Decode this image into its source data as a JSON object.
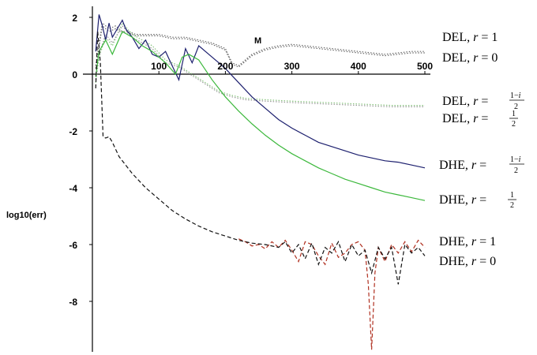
{
  "chart_data": {
    "type": "line",
    "title": "",
    "xlabel": "M",
    "ylabel": "log10(err)",
    "xlim": [
      0,
      500
    ],
    "ylim": [
      -10,
      2.5
    ],
    "x_ticks": [
      100,
      200,
      300,
      400,
      500
    ],
    "y_ticks": [
      2,
      0,
      -2,
      -4,
      -6,
      -8
    ],
    "grid": false,
    "legend_placement": "right",
    "legend_labels": {
      "del_r1": "DEL, r = 1",
      "del_r0": "DEL, r = 0",
      "del_r1mi": "DEL, r = (1−i)/2",
      "del_rhalf": "DEL, r = 1/2",
      "dhe_r1mi": "DHE, r = (1−i)/2",
      "dhe_rhalf": "DHE, r = 1/2",
      "dhe_r1": "DHE, r = 1",
      "dhe_r0": "DHE, r = 0"
    },
    "series": [
      {
        "name": "DEL, r = 1",
        "color": "#6a6a6a",
        "dash": "dot",
        "x": [
          5,
          15,
          25,
          35,
          45,
          55,
          65,
          80,
          100,
          120,
          140,
          160,
          180,
          200,
          210,
          220,
          230,
          240,
          260,
          280,
          300,
          320,
          340,
          360,
          380,
          400,
          420,
          440,
          460,
          480,
          500
        ],
        "y": [
          0.3,
          1.8,
          1.6,
          1.7,
          1.5,
          1.5,
          1.4,
          1.4,
          1.4,
          1.3,
          1.3,
          1.2,
          1.1,
          0.9,
          0.4,
          0.3,
          0.5,
          0.7,
          0.9,
          1.0,
          1.05,
          1.0,
          0.95,
          0.9,
          0.85,
          0.8,
          0.75,
          0.7,
          0.75,
          0.8,
          0.8
        ]
      },
      {
        "name": "DEL, r = 0",
        "color": "#6a6a6a",
        "dash": "dot",
        "x": [
          5,
          15,
          25,
          35,
          45,
          55,
          65,
          80,
          100,
          120,
          140,
          160,
          180,
          200,
          210,
          220,
          230,
          240,
          260,
          280,
          300,
          320,
          340,
          360,
          380,
          400,
          420,
          440,
          460,
          480,
          500
        ],
        "y": [
          0.2,
          1.7,
          1.5,
          1.6,
          1.45,
          1.45,
          1.35,
          1.35,
          1.35,
          1.25,
          1.25,
          1.15,
          1.05,
          0.85,
          0.35,
          0.25,
          0.45,
          0.65,
          0.85,
          0.95,
          1.0,
          0.95,
          0.9,
          0.85,
          0.8,
          0.75,
          0.7,
          0.65,
          0.7,
          0.75,
          0.75
        ]
      },
      {
        "name": "DEL, r = (1−i)/2",
        "color": "#88c47e",
        "dash": "dot",
        "x": [
          5,
          10,
          20,
          30,
          45,
          60,
          75,
          90,
          110,
          130,
          150,
          170,
          190,
          210,
          230,
          260,
          300,
          350,
          400,
          450,
          500
        ],
        "y": [
          -0.3,
          0.6,
          1.3,
          1.0,
          1.8,
          1.4,
          1.2,
          1.0,
          0.5,
          0.3,
          0.0,
          -0.3,
          -0.6,
          -0.75,
          -0.85,
          -0.9,
          -0.95,
          -1.0,
          -1.05,
          -1.1,
          -1.1
        ]
      },
      {
        "name": "DEL, r = 1/2",
        "color": "#9a9a9a",
        "dash": "dot",
        "x": [
          5,
          10,
          20,
          30,
          45,
          60,
          75,
          90,
          110,
          130,
          150,
          170,
          190,
          210,
          230,
          260,
          300,
          350,
          400,
          450,
          500
        ],
        "y": [
          -0.2,
          0.7,
          1.4,
          1.1,
          1.7,
          1.3,
          1.1,
          0.9,
          0.4,
          0.25,
          -0.05,
          -0.35,
          -0.65,
          -0.8,
          -0.9,
          -0.95,
          -1.0,
          -1.05,
          -1.1,
          -1.15,
          -1.15
        ]
      },
      {
        "name": "DHE, r = (1−i)/2",
        "color": "#1c1f6e",
        "dash": "solid",
        "x": [
          5,
          10,
          15,
          20,
          25,
          30,
          35,
          40,
          45,
          50,
          60,
          70,
          80,
          90,
          100,
          110,
          120,
          130,
          140,
          150,
          160,
          170,
          180,
          190,
          200,
          220,
          240,
          260,
          280,
          300,
          320,
          340,
          360,
          380,
          400,
          420,
          440,
          460,
          480,
          500
        ],
        "y": [
          0.8,
          2.1,
          1.7,
          1.2,
          1.8,
          1.3,
          1.5,
          1.7,
          1.9,
          1.6,
          1.3,
          0.9,
          1.2,
          0.7,
          0.6,
          0.8,
          0.3,
          -0.2,
          0.9,
          0.4,
          1.0,
          0.8,
          0.6,
          0.4,
          0.2,
          -0.3,
          -0.8,
          -1.2,
          -1.6,
          -1.9,
          -2.15,
          -2.4,
          -2.55,
          -2.7,
          -2.85,
          -2.95,
          -3.05,
          -3.1,
          -3.2,
          -3.3
        ]
      },
      {
        "name": "DHE, r = 1/2",
        "color": "#3cb83c",
        "dash": "solid",
        "x": [
          5,
          10,
          20,
          30,
          45,
          60,
          75,
          90,
          100,
          110,
          125,
          135,
          145,
          160,
          180,
          200,
          220,
          240,
          260,
          280,
          300,
          320,
          340,
          360,
          380,
          400,
          420,
          440,
          460,
          480,
          500
        ],
        "y": [
          -0.1,
          0.8,
          1.2,
          0.7,
          1.5,
          1.3,
          1.0,
          0.8,
          0.6,
          0.4,
          0.0,
          0.6,
          0.7,
          0.5,
          -0.2,
          -0.8,
          -1.3,
          -1.75,
          -2.15,
          -2.5,
          -2.8,
          -3.05,
          -3.3,
          -3.5,
          -3.7,
          -3.85,
          -4.0,
          -4.15,
          -4.25,
          -4.35,
          -4.45
        ]
      },
      {
        "name": "DHE, r = 1",
        "color": "#b03020",
        "dash": "dash",
        "x": [
          220,
          230,
          240,
          250,
          260,
          270,
          280,
          290,
          300,
          310,
          320,
          330,
          340,
          350,
          360,
          370,
          380,
          390,
          400,
          410,
          415,
          420,
          425,
          430,
          440,
          450,
          460,
          470,
          480,
          490,
          500
        ],
        "y": [
          -5.8,
          -5.9,
          -6.05,
          -6.0,
          -6.15,
          -5.9,
          -6.1,
          -5.85,
          -6.2,
          -6.6,
          -5.9,
          -6.0,
          -6.4,
          -6.7,
          -5.95,
          -6.45,
          -6.3,
          -6.0,
          -5.9,
          -6.2,
          -7.4,
          -9.7,
          -7.0,
          -6.1,
          -6.6,
          -6.0,
          -6.3,
          -5.9,
          -6.25,
          -5.85,
          -6.1
        ]
      },
      {
        "name": "DHE, r = 0",
        "color": "#111111",
        "dash": "dash",
        "x": [
          5,
          8,
          12,
          16,
          20,
          25,
          30,
          40,
          50,
          60,
          80,
          100,
          120,
          140,
          160,
          180,
          200,
          220,
          240,
          260,
          280,
          290,
          300,
          310,
          320,
          330,
          340,
          350,
          360,
          370,
          380,
          390,
          400,
          410,
          420,
          430,
          440,
          450,
          460,
          470,
          480,
          490,
          500
        ],
        "y": [
          -0.5,
          1.5,
          0.4,
          -2.2,
          -2.25,
          -2.2,
          -2.4,
          -2.9,
          -3.2,
          -3.5,
          -4.0,
          -4.4,
          -4.8,
          -5.1,
          -5.35,
          -5.55,
          -5.7,
          -5.85,
          -5.95,
          -6.0,
          -6.1,
          -5.9,
          -6.3,
          -6.0,
          -6.5,
          -5.95,
          -6.7,
          -6.1,
          -6.3,
          -5.9,
          -6.6,
          -6.0,
          -6.4,
          -6.2,
          -7.0,
          -6.1,
          -6.5,
          -6.1,
          -7.4,
          -6.0,
          -6.3,
          -6.1,
          -6.4
        ]
      }
    ]
  }
}
